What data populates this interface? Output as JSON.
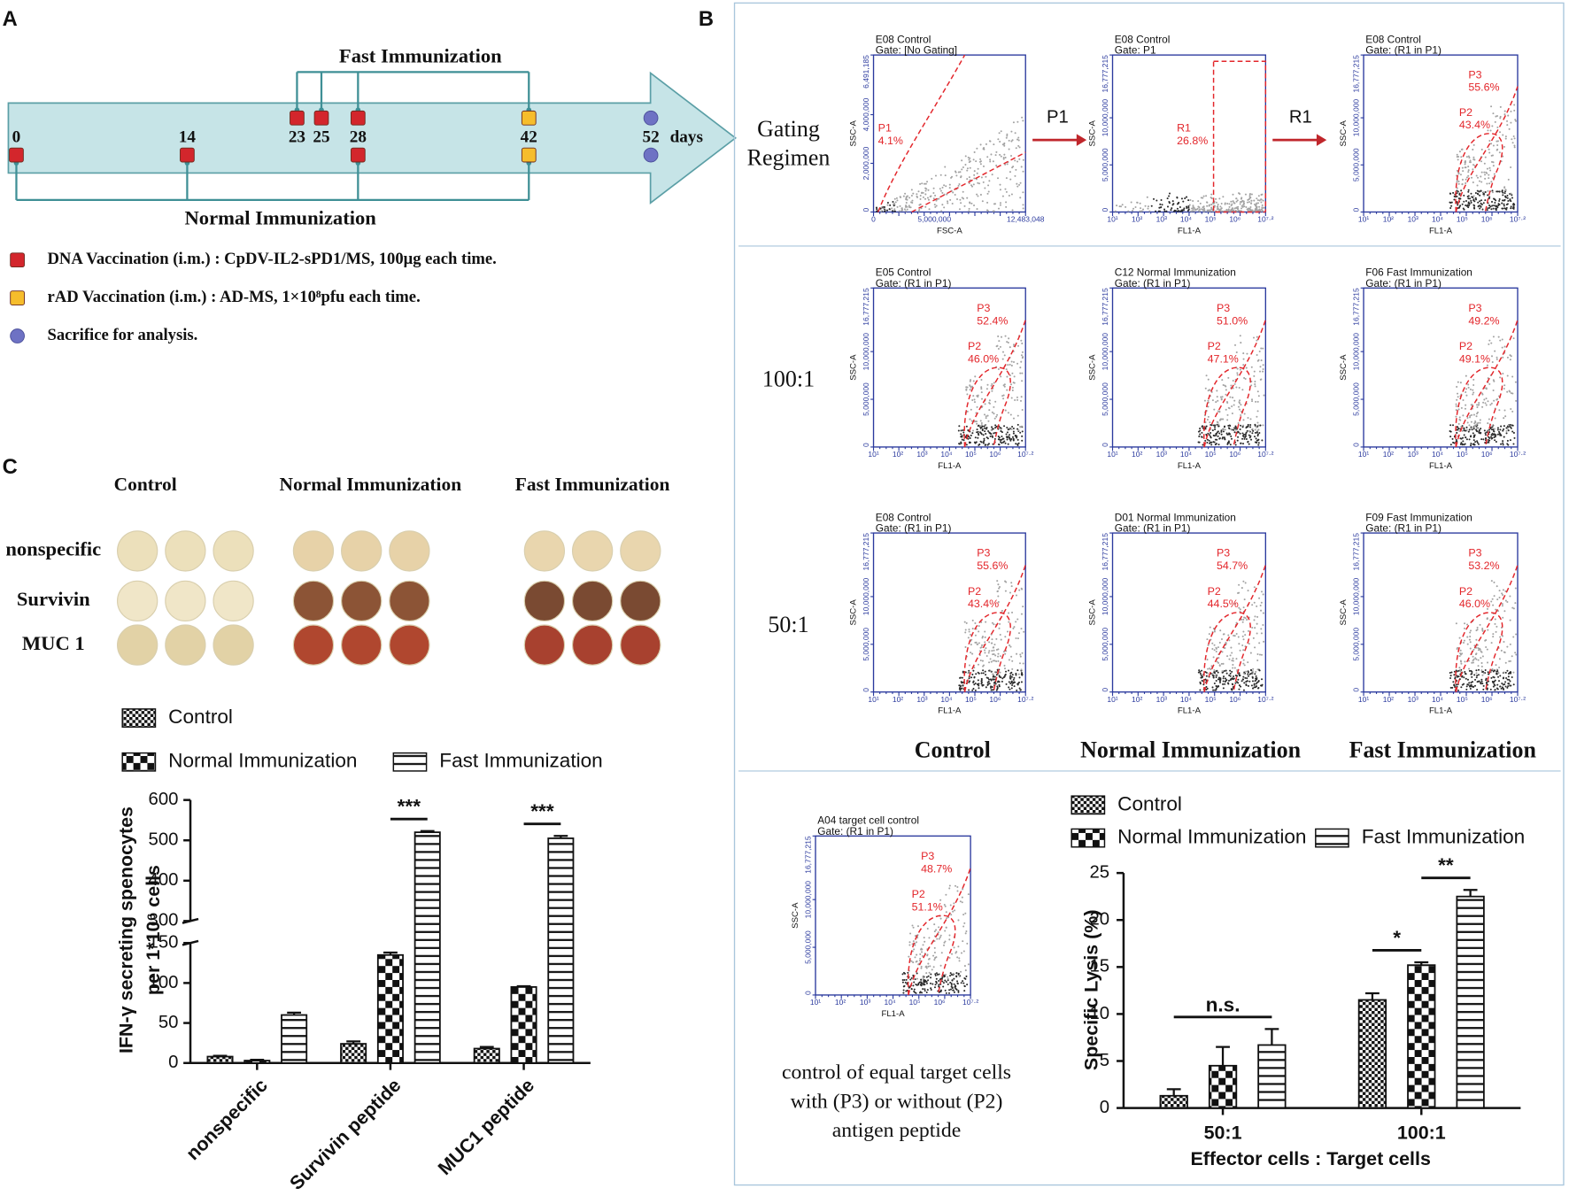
{
  "panels": {
    "a": "A",
    "b": "B",
    "c": "C"
  },
  "timeline": {
    "days": [
      0,
      14,
      23,
      25,
      28,
      42,
      52
    ],
    "unit": "days",
    "top_markers": [
      null,
      null,
      "dna",
      "dna",
      "dna",
      "rad",
      "sacrifice"
    ],
    "bottom_markers": [
      "dna",
      "dna",
      null,
      null,
      "dna",
      "rad",
      "sacrifice"
    ],
    "fast_label": "Fast Immunization",
    "normal_label": "Normal Immunization",
    "marker_colors": {
      "dna": "#d3262c",
      "rad": "#f6bd2c",
      "sacrifice": "#6e72c4"
    },
    "legend": [
      {
        "marker": "dna",
        "text": "DNA Vaccination (i.m.) : CpDV-IL2-sPD1/MS, 100μg each time."
      },
      {
        "marker": "rad",
        "text": "rAD Vaccination (i.m.) : AD-MS, 1×10⁸pfu each time."
      },
      {
        "marker": "sacrifice",
        "text": "Sacrifice for analysis."
      }
    ]
  },
  "wells": {
    "columns": [
      "Control",
      "Normal Immunization",
      "Fast Immunization"
    ],
    "rows": [
      "nonspecific",
      "Survivin",
      "MUC 1"
    ],
    "colors": [
      [
        "#ece0bb",
        "#e7d2a8",
        "#e9d6ae"
      ],
      [
        "#f0e6c8",
        "#8c5436",
        "#7a4a32"
      ],
      [
        "#e2d2a6",
        "#b0472f",
        "#a8412f"
      ]
    ]
  },
  "flow": {
    "axes": {
      "linear": {
        "y": [
          "6,491,185",
          "4,000,000",
          "2,000,000",
          "0"
        ],
        "x": [
          "0",
          "5,000,000",
          "12,483,048"
        ]
      },
      "log": {
        "y": [
          "16,777,215",
          "10,000,000",
          "5,000,000",
          "0"
        ],
        "x": [
          "10¹",
          "10²",
          "10³",
          "10⁴",
          "10⁵",
          "10⁶",
          "10⁷·²"
        ]
      }
    },
    "plots": [
      {
        "title": "E08 Control",
        "gate": "Gate: [No Gating]",
        "axes": "linear",
        "x_label": "FSC-A",
        "y_label": "SSC-A",
        "gates": [
          {
            "name": "P1",
            "pct": "4.1%"
          }
        ]
      },
      {
        "title": "E08 Control",
        "gate": "Gate: P1",
        "axes": "log",
        "x_label": "FL1-A",
        "y_label": "SSC-A",
        "gates": [
          {
            "name": "R1",
            "pct": "26.8%"
          }
        ]
      },
      {
        "title": "E08 Control",
        "gate": "Gate: (R1 in P1)",
        "axes": "log",
        "x_label": "FL1-A",
        "y_label": "SSC-A",
        "gates": [
          {
            "name": "P3",
            "pct": "55.6%"
          },
          {
            "name": "P2",
            "pct": "43.4%"
          }
        ]
      },
      {
        "title": "E05 Control",
        "gate": "Gate: (R1 in P1)",
        "axes": "log",
        "x_label": "FL1-A",
        "y_label": "SSC-A",
        "gates": [
          {
            "name": "P3",
            "pct": "52.4%"
          },
          {
            "name": "P2",
            "pct": "46.0%"
          }
        ]
      },
      {
        "title": "C12 Normal Immunization",
        "gate": "Gate: (R1 in P1)",
        "axes": "log",
        "x_label": "FL1-A",
        "y_label": "SSC-A",
        "gates": [
          {
            "name": "P3",
            "pct": "51.0%"
          },
          {
            "name": "P2",
            "pct": "47.1%"
          }
        ]
      },
      {
        "title": "F06 Fast Immunization",
        "gate": "Gate: (R1 in P1)",
        "axes": "log",
        "x_label": "FL1-A",
        "y_label": "SSC-A",
        "gates": [
          {
            "name": "P3",
            "pct": "49.2%"
          },
          {
            "name": "P2",
            "pct": "49.1%"
          }
        ]
      },
      {
        "title": "E08 Control",
        "gate": "Gate: (R1 in P1)",
        "axes": "log",
        "x_label": "FL1-A",
        "y_label": "SSC-A",
        "gates": [
          {
            "name": "P3",
            "pct": "55.6%"
          },
          {
            "name": "P2",
            "pct": "43.4%"
          }
        ]
      },
      {
        "title": "D01 Normal Immunization",
        "gate": "Gate: (R1 in P1)",
        "axes": "log",
        "x_label": "FL1-A",
        "y_label": "SSC-A",
        "gates": [
          {
            "name": "P3",
            "pct": "54.7%"
          },
          {
            "name": "P2",
            "pct": "44.5%"
          }
        ]
      },
      {
        "title": "F09 Fast Immunization",
        "gate": "Gate: (R1 in P1)",
        "axes": "log",
        "x_label": "FL1-A",
        "y_label": "SSC-A",
        "gates": [
          {
            "name": "P3",
            "pct": "53.2%"
          },
          {
            "name": "P2",
            "pct": "46.0%"
          }
        ]
      },
      {
        "title": "A04 target cell control",
        "gate": "Gate: (R1 in P1)",
        "axes": "log",
        "x_label": "FL1-A",
        "y_label": "SSC-A",
        "gates": [
          {
            "name": "P3",
            "pct": "48.7%"
          },
          {
            "name": "P2",
            "pct": "51.1%"
          }
        ]
      }
    ],
    "row_labels": [
      [
        "Gating",
        "Regimen"
      ],
      [
        "100:1"
      ],
      [
        "50:1"
      ]
    ],
    "column_labels": [
      "Control",
      "Normal Immunization",
      "Fast Immunization"
    ],
    "arrows": [
      "P1",
      "R1"
    ],
    "caption": [
      "control of equal target cells",
      "with (P3) or without (P2)",
      "antigen peptide"
    ]
  },
  "chart_data": [
    {
      "type": "bar",
      "categories": [
        "nonspecific",
        "Survivin peptide",
        "MUC1 peptide"
      ],
      "series": [
        {
          "name": "Control",
          "pattern": "check-small",
          "values": [
            8,
            24,
            18
          ],
          "errors": [
            1,
            3,
            2
          ]
        },
        {
          "name": "Normal Immunization",
          "pattern": "check-big",
          "values": [
            3,
            135,
            95
          ],
          "errors": [
            1,
            3,
            1
          ]
        },
        {
          "name": "Fast Immunization",
          "pattern": "stripes",
          "values": [
            60,
            520,
            505
          ],
          "errors": [
            3,
            3,
            6
          ]
        }
      ],
      "ylabel": [
        "IFN-γ secreting spenocytes",
        "per 1*10⁶ cells"
      ],
      "ylim": [
        0,
        600
      ],
      "axis_break": [
        150,
        300
      ],
      "yticks": [
        0,
        50,
        100,
        150,
        300,
        400,
        500,
        600
      ],
      "annotations": [
        {
          "text": "***",
          "category": 1,
          "bars": [
            1,
            2
          ]
        },
        {
          "text": "***",
          "category": 2,
          "bars": [
            1,
            2
          ]
        }
      ]
    },
    {
      "type": "bar",
      "categories": [
        "50:1",
        "100:1"
      ],
      "series": [
        {
          "name": "Control",
          "pattern": "check-small",
          "values": [
            1.3,
            11.5
          ],
          "errors": [
            0.7,
            0.7
          ]
        },
        {
          "name": "Normal Immunization",
          "pattern": "check-big",
          "values": [
            4.5,
            15.2
          ],
          "errors": [
            2.0,
            0.3
          ]
        },
        {
          "name": "Fast Immunization",
          "pattern": "stripes",
          "values": [
            6.7,
            22.5
          ],
          "errors": [
            1.7,
            0.7
          ]
        }
      ],
      "ylabel": "Specific Lysis (%)",
      "xlabel": "Effector cells : Target cells",
      "ylim": [
        0,
        25
      ],
      "yticks": [
        0,
        5,
        10,
        15,
        20,
        25
      ],
      "annotations": [
        {
          "text": "n.s.",
          "category": 0,
          "bars": [
            0,
            2
          ]
        },
        {
          "text": "*",
          "category": 1,
          "bars": [
            0,
            1
          ]
        },
        {
          "text": "**",
          "category": 1,
          "bars": [
            1,
            2
          ]
        }
      ]
    }
  ]
}
